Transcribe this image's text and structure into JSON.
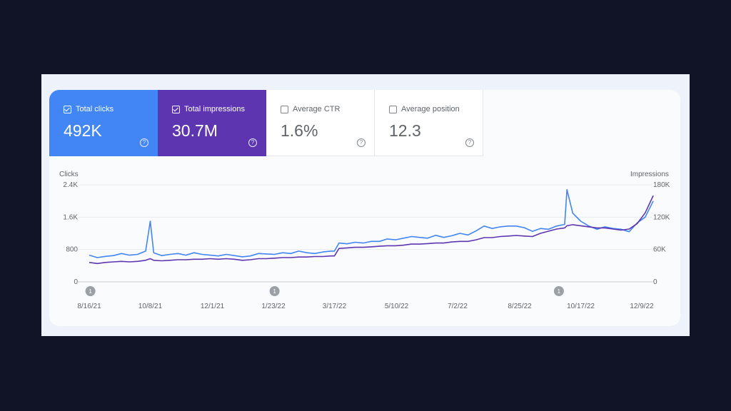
{
  "metrics": [
    {
      "label": "Total clicks",
      "value": "492K",
      "checked": true,
      "color": "#4285f4"
    },
    {
      "label": "Total impressions",
      "value": "30.7M",
      "checked": true,
      "color": "#5e35b1"
    },
    {
      "label": "Average CTR",
      "value": "1.6%",
      "checked": false,
      "color": "#ffffff"
    },
    {
      "label": "Average position",
      "value": "12.3",
      "checked": false,
      "color": "#ffffff"
    }
  ],
  "help_glyph": "?",
  "annotation_glyph": "1",
  "chart_data": {
    "type": "line",
    "ylabel_left": "Clicks",
    "ylabel_right": "Impressions",
    "y_left_ticks": [
      "0",
      "800",
      "1.6K",
      "2.4K"
    ],
    "y_right_ticks": [
      "0",
      "60K",
      "120K",
      "180K"
    ],
    "ylim_left": [
      0,
      2400
    ],
    "ylim_right": [
      0,
      180000
    ],
    "x_labels": [
      "8/16/21",
      "10/8/21",
      "12/1/21",
      "1/23/22",
      "3/17/22",
      "5/10/22",
      "7/2/22",
      "8/25/22",
      "10/17/22",
      "12/9/22"
    ],
    "annotations": [
      {
        "date": "8/17/21",
        "label": "1"
      },
      {
        "date": "1/24/22",
        "label": "1"
      },
      {
        "date": "9/28/22",
        "label": "1"
      }
    ],
    "grid": true,
    "series": [
      {
        "name": "Clicks",
        "axis": "left",
        "color": "#4285f4",
        "x": [
          "8/16/21",
          "8/23/21",
          "8/30/21",
          "9/6/21",
          "9/13/21",
          "9/20/21",
          "9/27/21",
          "10/4/21",
          "10/8/21",
          "10/11/21",
          "10/18/21",
          "10/25/21",
          "11/1/21",
          "11/8/21",
          "11/15/21",
          "11/22/21",
          "11/29/21",
          "12/6/21",
          "12/13/21",
          "12/20/21",
          "12/27/21",
          "1/3/22",
          "1/10/22",
          "1/17/22",
          "1/24/22",
          "1/31/22",
          "2/7/22",
          "2/14/22",
          "2/21/22",
          "2/28/22",
          "3/7/22",
          "3/14/22",
          "3/17/22",
          "3/21/22",
          "3/28/22",
          "4/4/22",
          "4/11/22",
          "4/18/22",
          "4/25/22",
          "5/2/22",
          "5/9/22",
          "5/16/22",
          "5/23/22",
          "5/30/22",
          "6/6/22",
          "6/13/22",
          "6/20/22",
          "6/27/22",
          "7/4/22",
          "7/11/22",
          "7/18/22",
          "7/25/22",
          "8/1/22",
          "8/8/22",
          "8/15/22",
          "8/22/22",
          "8/29/22",
          "9/5/22",
          "9/12/22",
          "9/19/22",
          "9/26/22",
          "10/3/22",
          "10/5/22",
          "10/10/22",
          "10/17/22",
          "10/24/22",
          "10/31/22",
          "11/7/22",
          "11/14/22",
          "11/21/22",
          "11/28/22",
          "12/5/22",
          "12/12/22",
          "12/19/22"
        ],
        "values": [
          660,
          600,
          630,
          650,
          700,
          660,
          680,
          760,
          1500,
          720,
          650,
          680,
          700,
          660,
          720,
          680,
          660,
          640,
          680,
          650,
          620,
          640,
          700,
          690,
          680,
          720,
          700,
          760,
          720,
          700,
          740,
          760,
          760,
          960,
          940,
          980,
          960,
          1000,
          1000,
          1060,
          1040,
          1080,
          1120,
          1100,
          1080,
          1150,
          1100,
          1140,
          1200,
          1160,
          1260,
          1380,
          1320,
          1360,
          1380,
          1380,
          1340,
          1250,
          1320,
          1300,
          1380,
          1420,
          2280,
          1700,
          1500,
          1380,
          1300,
          1360,
          1320,
          1300,
          1240,
          1460,
          1600,
          2000
        ]
      },
      {
        "name": "Impressions",
        "axis": "right",
        "color": "#5e35b1",
        "x": [
          "8/16/21",
          "8/23/21",
          "8/30/21",
          "9/6/21",
          "9/13/21",
          "9/20/21",
          "9/27/21",
          "10/4/21",
          "10/8/21",
          "10/11/21",
          "10/18/21",
          "10/25/21",
          "11/1/21",
          "11/8/21",
          "11/15/21",
          "11/22/21",
          "11/29/21",
          "12/6/21",
          "12/13/21",
          "12/20/21",
          "12/27/21",
          "1/3/22",
          "1/10/22",
          "1/17/22",
          "1/24/22",
          "1/31/22",
          "2/7/22",
          "2/14/22",
          "2/21/22",
          "2/28/22",
          "3/7/22",
          "3/14/22",
          "3/17/22",
          "3/21/22",
          "3/28/22",
          "4/4/22",
          "4/11/22",
          "4/18/22",
          "4/25/22",
          "5/2/22",
          "5/9/22",
          "5/16/22",
          "5/23/22",
          "5/30/22",
          "6/6/22",
          "6/13/22",
          "6/20/22",
          "6/27/22",
          "7/4/22",
          "7/11/22",
          "7/18/22",
          "7/25/22",
          "8/1/22",
          "8/8/22",
          "8/15/22",
          "8/22/22",
          "8/29/22",
          "9/5/22",
          "9/12/22",
          "9/19/22",
          "9/26/22",
          "10/3/22",
          "10/5/22",
          "10/10/22",
          "10/17/22",
          "10/24/22",
          "10/31/22",
          "11/7/22",
          "11/14/22",
          "11/21/22",
          "11/28/22",
          "12/5/22",
          "12/12/22",
          "12/19/22"
        ],
        "values": [
          36000,
          34000,
          36000,
          37000,
          38000,
          37000,
          38000,
          40000,
          43000,
          40000,
          39000,
          40000,
          41000,
          41000,
          42000,
          42000,
          43000,
          42000,
          43000,
          42000,
          40000,
          41000,
          43000,
          43000,
          44000,
          45000,
          45000,
          46000,
          46000,
          47000,
          47000,
          48000,
          48000,
          62000,
          63000,
          64000,
          64000,
          65000,
          66000,
          67000,
          67000,
          68000,
          70000,
          70000,
          71000,
          72000,
          72000,
          74000,
          75000,
          75000,
          78000,
          82000,
          82000,
          84000,
          85000,
          86000,
          85000,
          84000,
          90000,
          94000,
          98000,
          100000,
          104000,
          106000,
          104000,
          102000,
          100000,
          100000,
          98000,
          96000,
          98000,
          108000,
          128000,
          160000
        ]
      }
    ]
  }
}
